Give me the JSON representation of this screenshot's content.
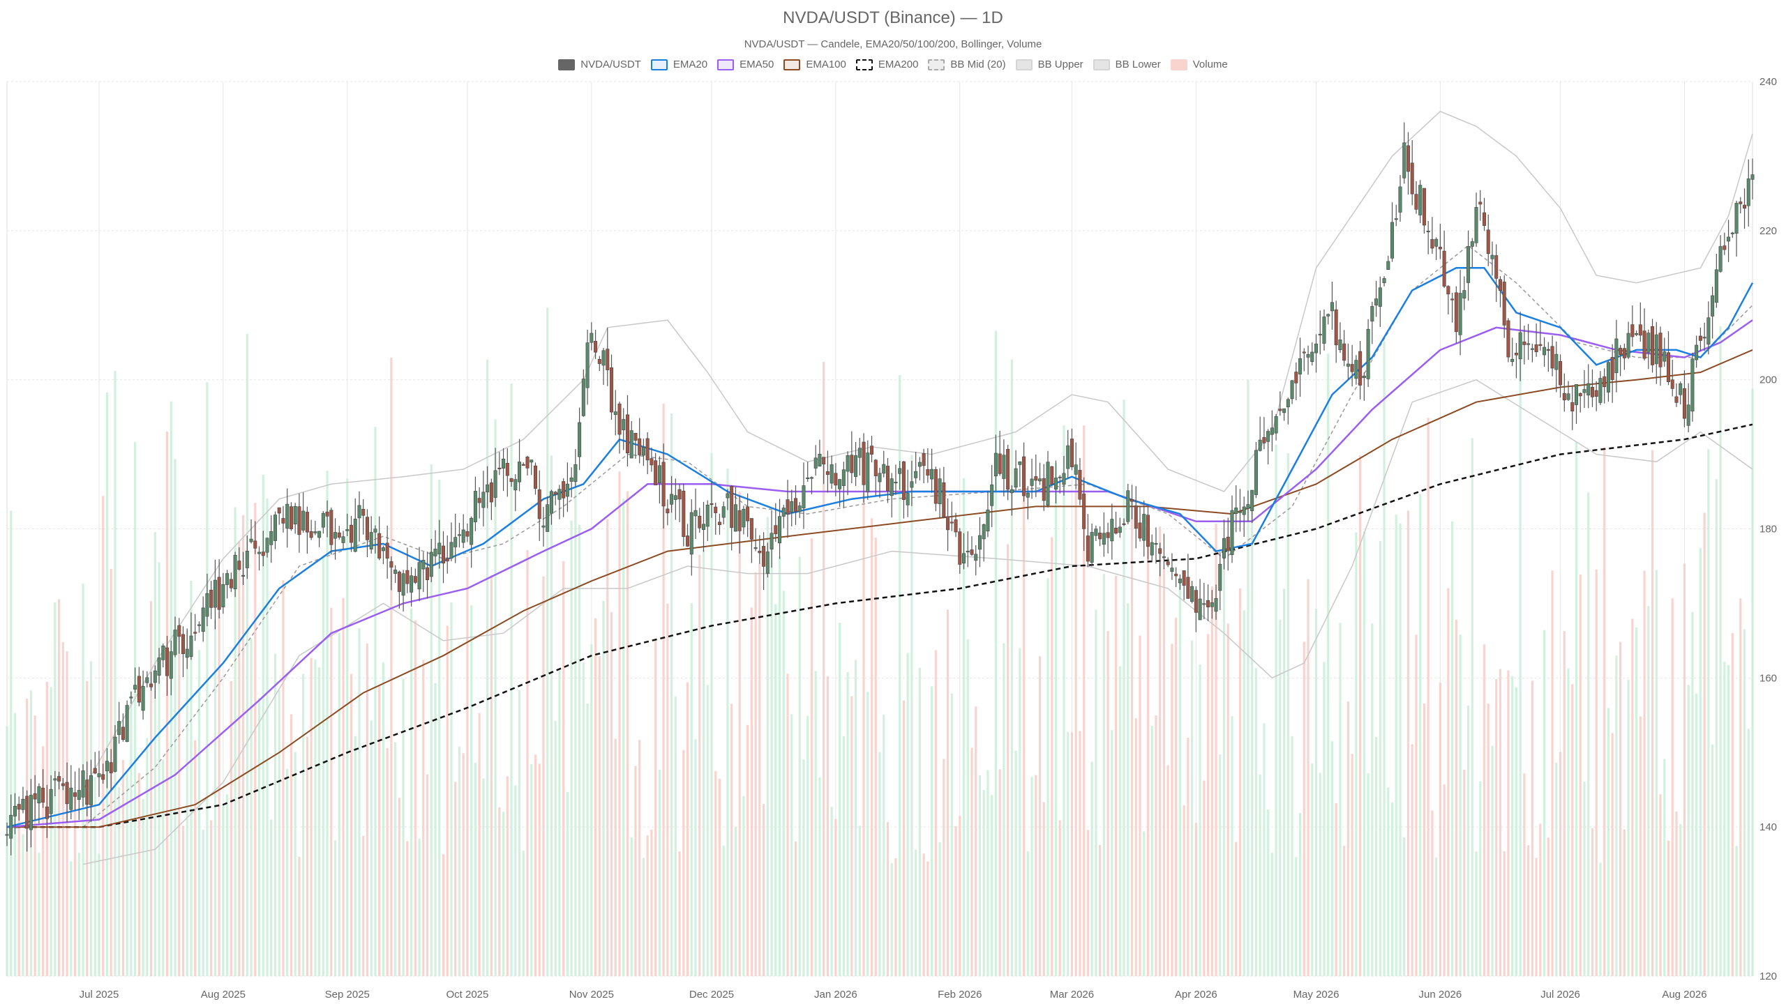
{
  "chart_data": {
    "type": "candlestick",
    "title": "NVDA/USDT (Binance) — 1D",
    "subtitle": "NVDA/USDT — Candele, EMA20/50/100/200, Bollinger, Volume",
    "symbol": "NVDA/USDT",
    "timeframe": "1D",
    "ylim": [
      120,
      240
    ],
    "y_ticks": [
      120,
      140,
      160,
      180,
      200,
      220,
      240
    ],
    "x_range": [
      "2025-06-08",
      "2026-08-18"
    ],
    "x_ticks": [
      {
        "date": "2025-07-01",
        "label": "Jul 2025"
      },
      {
        "date": "2025-08-01",
        "label": "Aug 2025"
      },
      {
        "date": "2025-09-01",
        "label": "Sep 2025"
      },
      {
        "date": "2025-10-01",
        "label": "Oct 2025"
      },
      {
        "date": "2025-11-01",
        "label": "Nov 2025"
      },
      {
        "date": "2025-12-01",
        "label": "Dec 2025"
      },
      {
        "date": "2026-01-01",
        "label": "Jan 2026"
      },
      {
        "date": "2026-02-01",
        "label": "Feb 2026"
      },
      {
        "date": "2026-03-01",
        "label": "Mar 2026"
      },
      {
        "date": "2026-04-01",
        "label": "Apr 2026"
      },
      {
        "date": "2026-05-01",
        "label": "May 2026"
      },
      {
        "date": "2026-06-01",
        "label": "Jun 2026"
      },
      {
        "date": "2026-07-01",
        "label": "Jul 2026"
      },
      {
        "date": "2026-08-01",
        "label": "Aug 2026"
      }
    ],
    "grid": true,
    "legend_position": "top-center",
    "legend": [
      {
        "label": "NVDA/USDT",
        "key": "candles",
        "fill": "#666666",
        "border": "#666666",
        "dashed": false
      },
      {
        "label": "EMA20",
        "key": "ema20",
        "fill": "#e6f1fc",
        "border": "#1a7fe0",
        "dashed": false
      },
      {
        "label": "EMA50",
        "key": "ema50",
        "fill": "#efe8fb",
        "border": "#9a5ef0",
        "dashed": false
      },
      {
        "label": "EMA100",
        "key": "ema100",
        "fill": "#f2e9e2",
        "border": "#8b4a22",
        "dashed": false
      },
      {
        "label": "EMA200",
        "key": "ema200",
        "fill": "#ffffff",
        "border": "#111111",
        "dashed": true
      },
      {
        "label": "BB Mid (20)",
        "key": "bb_mid",
        "fill": "#eeeeee",
        "border": "#aaaaaa",
        "dashed": true
      },
      {
        "label": "BB Upper",
        "key": "bb_upper",
        "fill": "#e5e5e5",
        "border": "#d5d5d5",
        "dashed": false
      },
      {
        "label": "BB Lower",
        "key": "bb_lower",
        "fill": "#e5e5e5",
        "border": "#d5d5d5",
        "dashed": false
      },
      {
        "label": "Volume",
        "key": "volume",
        "fill": "#f9d3cd",
        "border": "#f9d3cd",
        "dashed": false
      }
    ],
    "colors": {
      "up": "#5a8a6c",
      "down": "#a05545",
      "wick": "#555555",
      "vol_up": "#c9efd8",
      "vol_down": "#f8cdc7",
      "ema20": "#1a7fe0",
      "ema50": "#9a5ef0",
      "ema100": "#8b4a22",
      "ema200": "#111111",
      "bb_mid": "#999999",
      "bb_band": "#c8c8c8",
      "grid": "#e6e6e6"
    },
    "price_path": [
      {
        "date": "2025-06-08",
        "close": 141
      },
      {
        "date": "2025-06-20",
        "close": 144
      },
      {
        "date": "2025-07-01",
        "close": 146
      },
      {
        "date": "2025-07-10",
        "close": 157
      },
      {
        "date": "2025-07-20",
        "close": 164
      },
      {
        "date": "2025-08-01",
        "close": 172
      },
      {
        "date": "2025-08-10",
        "close": 178
      },
      {
        "date": "2025-08-18",
        "close": 182
      },
      {
        "date": "2025-08-28",
        "close": 179
      },
      {
        "date": "2025-09-05",
        "close": 181
      },
      {
        "date": "2025-09-15",
        "close": 172
      },
      {
        "date": "2025-09-25",
        "close": 177
      },
      {
        "date": "2025-10-05",
        "close": 184
      },
      {
        "date": "2025-10-15",
        "close": 190
      },
      {
        "date": "2025-10-20",
        "close": 182
      },
      {
        "date": "2025-10-27",
        "close": 186
      },
      {
        "date": "2025-11-01",
        "close": 208
      },
      {
        "date": "2025-11-08",
        "close": 194
      },
      {
        "date": "2025-11-15",
        "close": 189
      },
      {
        "date": "2025-11-25",
        "close": 180
      },
      {
        "date": "2025-12-05",
        "close": 183
      },
      {
        "date": "2025-12-15",
        "close": 176
      },
      {
        "date": "2025-12-25",
        "close": 187
      },
      {
        "date": "2026-01-05",
        "close": 189
      },
      {
        "date": "2026-01-15",
        "close": 186
      },
      {
        "date": "2026-01-25",
        "close": 187
      },
      {
        "date": "2026-02-03",
        "close": 175
      },
      {
        "date": "2026-02-10",
        "close": 189
      },
      {
        "date": "2026-02-20",
        "close": 185
      },
      {
        "date": "2026-03-01",
        "close": 190
      },
      {
        "date": "2026-03-05",
        "close": 178
      },
      {
        "date": "2026-03-15",
        "close": 183
      },
      {
        "date": "2026-03-25",
        "close": 176
      },
      {
        "date": "2026-04-03",
        "close": 168
      },
      {
        "date": "2026-04-10",
        "close": 180
      },
      {
        "date": "2026-04-20",
        "close": 194
      },
      {
        "date": "2026-04-28",
        "close": 202
      },
      {
        "date": "2026-05-05",
        "close": 208
      },
      {
        "date": "2026-05-12",
        "close": 200
      },
      {
        "date": "2026-05-18",
        "close": 215
      },
      {
        "date": "2026-05-23",
        "close": 230
      },
      {
        "date": "2026-05-30",
        "close": 219
      },
      {
        "date": "2026-06-05",
        "close": 208
      },
      {
        "date": "2026-06-10",
        "close": 224
      },
      {
        "date": "2026-06-18",
        "close": 205
      },
      {
        "date": "2026-06-27",
        "close": 206
      },
      {
        "date": "2026-07-03",
        "close": 196
      },
      {
        "date": "2026-07-10",
        "close": 200
      },
      {
        "date": "2026-07-18",
        "close": 205
      },
      {
        "date": "2026-07-26",
        "close": 204
      },
      {
        "date": "2026-08-01",
        "close": 196
      },
      {
        "date": "2026-08-06",
        "close": 208
      },
      {
        "date": "2026-08-11",
        "close": 219
      },
      {
        "date": "2026-08-18",
        "close": 226
      }
    ],
    "ema20_path": [
      {
        "date": "2025-06-08",
        "value": 140
      },
      {
        "date": "2025-07-01",
        "value": 143
      },
      {
        "date": "2025-07-15",
        "value": 152
      },
      {
        "date": "2025-08-01",
        "value": 162
      },
      {
        "date": "2025-08-15",
        "value": 172
      },
      {
        "date": "2025-08-28",
        "value": 177
      },
      {
        "date": "2025-09-10",
        "value": 178
      },
      {
        "date": "2025-09-22",
        "value": 175
      },
      {
        "date": "2025-10-05",
        "value": 178
      },
      {
        "date": "2025-10-20",
        "value": 184
      },
      {
        "date": "2025-10-30",
        "value": 186
      },
      {
        "date": "2025-11-08",
        "value": 192
      },
      {
        "date": "2025-11-20",
        "value": 190
      },
      {
        "date": "2025-12-05",
        "value": 185
      },
      {
        "date": "2025-12-20",
        "value": 182
      },
      {
        "date": "2026-01-05",
        "value": 184
      },
      {
        "date": "2026-01-20",
        "value": 185
      },
      {
        "date": "2026-02-05",
        "value": 185
      },
      {
        "date": "2026-02-20",
        "value": 185
      },
      {
        "date": "2026-03-01",
        "value": 187
      },
      {
        "date": "2026-03-15",
        "value": 184
      },
      {
        "date": "2026-03-28",
        "value": 182
      },
      {
        "date": "2026-04-06",
        "value": 177
      },
      {
        "date": "2026-04-15",
        "value": 178
      },
      {
        "date": "2026-04-25",
        "value": 188
      },
      {
        "date": "2026-05-05",
        "value": 198
      },
      {
        "date": "2026-05-15",
        "value": 203
      },
      {
        "date": "2026-05-25",
        "value": 212
      },
      {
        "date": "2026-06-05",
        "value": 215
      },
      {
        "date": "2026-06-12",
        "value": 215
      },
      {
        "date": "2026-06-20",
        "value": 209
      },
      {
        "date": "2026-07-01",
        "value": 207
      },
      {
        "date": "2026-07-10",
        "value": 202
      },
      {
        "date": "2026-07-20",
        "value": 204
      },
      {
        "date": "2026-07-30",
        "value": 204
      },
      {
        "date": "2026-08-05",
        "value": 203
      },
      {
        "date": "2026-08-12",
        "value": 207
      },
      {
        "date": "2026-08-18",
        "value": 213
      }
    ],
    "ema50_path": [
      {
        "date": "2025-06-08",
        "value": 140
      },
      {
        "date": "2025-07-01",
        "value": 141
      },
      {
        "date": "2025-07-20",
        "value": 147
      },
      {
        "date": "2025-08-10",
        "value": 157
      },
      {
        "date": "2025-08-28",
        "value": 166
      },
      {
        "date": "2025-09-15",
        "value": 170
      },
      {
        "date": "2025-10-01",
        "value": 172
      },
      {
        "date": "2025-10-20",
        "value": 177
      },
      {
        "date": "2025-11-01",
        "value": 180
      },
      {
        "date": "2025-11-15",
        "value": 186
      },
      {
        "date": "2025-12-01",
        "value": 186
      },
      {
        "date": "2025-12-20",
        "value": 185
      },
      {
        "date": "2026-01-10",
        "value": 185
      },
      {
        "date": "2026-02-01",
        "value": 185
      },
      {
        "date": "2026-02-20",
        "value": 185
      },
      {
        "date": "2026-03-10",
        "value": 185
      },
      {
        "date": "2026-04-01",
        "value": 181
      },
      {
        "date": "2026-04-15",
        "value": 181
      },
      {
        "date": "2026-05-01",
        "value": 188
      },
      {
        "date": "2026-05-15",
        "value": 196
      },
      {
        "date": "2026-06-01",
        "value": 204
      },
      {
        "date": "2026-06-15",
        "value": 207
      },
      {
        "date": "2026-07-01",
        "value": 206
      },
      {
        "date": "2026-07-15",
        "value": 204
      },
      {
        "date": "2026-08-01",
        "value": 203
      },
      {
        "date": "2026-08-10",
        "value": 205
      },
      {
        "date": "2026-08-18",
        "value": 208
      }
    ],
    "ema100_path": [
      {
        "date": "2025-06-08",
        "value": 140
      },
      {
        "date": "2025-07-01",
        "value": 140
      },
      {
        "date": "2025-07-25",
        "value": 143
      },
      {
        "date": "2025-08-15",
        "value": 150
      },
      {
        "date": "2025-09-05",
        "value": 158
      },
      {
        "date": "2025-09-25",
        "value": 163
      },
      {
        "date": "2025-10-15",
        "value": 169
      },
      {
        "date": "2025-11-01",
        "value": 173
      },
      {
        "date": "2025-11-20",
        "value": 177
      },
      {
        "date": "2025-12-20",
        "value": 179
      },
      {
        "date": "2026-01-20",
        "value": 181
      },
      {
        "date": "2026-02-20",
        "value": 183
      },
      {
        "date": "2026-03-20",
        "value": 183
      },
      {
        "date": "2026-04-10",
        "value": 182
      },
      {
        "date": "2026-05-01",
        "value": 186
      },
      {
        "date": "2026-05-20",
        "value": 192
      },
      {
        "date": "2026-06-10",
        "value": 197
      },
      {
        "date": "2026-07-01",
        "value": 199
      },
      {
        "date": "2026-07-20",
        "value": 200
      },
      {
        "date": "2026-08-05",
        "value": 201
      },
      {
        "date": "2026-08-18",
        "value": 204
      }
    ],
    "ema200_path": [
      {
        "date": "2025-06-08",
        "value": 140
      },
      {
        "date": "2025-07-01",
        "value": 140
      },
      {
        "date": "2025-08-01",
        "value": 143
      },
      {
        "date": "2025-09-01",
        "value": 150
      },
      {
        "date": "2025-10-01",
        "value": 156
      },
      {
        "date": "2025-11-01",
        "value": 163
      },
      {
        "date": "2025-12-01",
        "value": 167
      },
      {
        "date": "2026-01-01",
        "value": 170
      },
      {
        "date": "2026-02-01",
        "value": 172
      },
      {
        "date": "2026-03-01",
        "value": 175
      },
      {
        "date": "2026-04-01",
        "value": 176
      },
      {
        "date": "2026-05-01",
        "value": 180
      },
      {
        "date": "2026-06-01",
        "value": 186
      },
      {
        "date": "2026-07-01",
        "value": 190
      },
      {
        "date": "2026-08-01",
        "value": 192
      },
      {
        "date": "2026-08-18",
        "value": 194
      }
    ],
    "bb_mid_path": [
      {
        "date": "2025-06-27",
        "value": 140
      },
      {
        "date": "2025-07-15",
        "value": 148
      },
      {
        "date": "2025-08-01",
        "value": 160
      },
      {
        "date": "2025-08-20",
        "value": 175
      },
      {
        "date": "2025-09-10",
        "value": 179
      },
      {
        "date": "2025-09-25",
        "value": 176
      },
      {
        "date": "2025-10-10",
        "value": 178
      },
      {
        "date": "2025-10-25",
        "value": 183
      },
      {
        "date": "2025-11-10",
        "value": 190
      },
      {
        "date": "2025-11-25",
        "value": 189
      },
      {
        "date": "2025-12-10",
        "value": 183
      },
      {
        "date": "2025-12-25",
        "value": 182
      },
      {
        "date": "2026-01-15",
        "value": 184
      },
      {
        "date": "2026-02-10",
        "value": 185
      },
      {
        "date": "2026-03-05",
        "value": 186
      },
      {
        "date": "2026-03-25",
        "value": 182
      },
      {
        "date": "2026-04-08",
        "value": 176
      },
      {
        "date": "2026-04-25",
        "value": 183
      },
      {
        "date": "2026-05-10",
        "value": 198
      },
      {
        "date": "2026-05-25",
        "value": 212
      },
      {
        "date": "2026-06-08",
        "value": 218
      },
      {
        "date": "2026-06-20",
        "value": 213
      },
      {
        "date": "2026-07-05",
        "value": 205
      },
      {
        "date": "2026-07-20",
        "value": 203
      },
      {
        "date": "2026-08-05",
        "value": 203
      },
      {
        "date": "2026-08-18",
        "value": 210
      }
    ],
    "bb_upper_path": [
      {
        "date": "2025-06-27",
        "value": 145
      },
      {
        "date": "2025-07-15",
        "value": 162
      },
      {
        "date": "2025-08-01",
        "value": 176
      },
      {
        "date": "2025-08-15",
        "value": 184
      },
      {
        "date": "2025-08-28",
        "value": 186
      },
      {
        "date": "2025-09-15",
        "value": 187
      },
      {
        "date": "2025-09-30",
        "value": 188
      },
      {
        "date": "2025-10-15",
        "value": 192
      },
      {
        "date": "2025-10-30",
        "value": 200
      },
      {
        "date": "2025-11-05",
        "value": 207
      },
      {
        "date": "2025-11-20",
        "value": 208
      },
      {
        "date": "2025-11-30",
        "value": 201
      },
      {
        "date": "2025-12-10",
        "value": 193
      },
      {
        "date": "2025-12-25",
        "value": 189
      },
      {
        "date": "2026-01-10",
        "value": 191
      },
      {
        "date": "2026-01-25",
        "value": 190
      },
      {
        "date": "2026-02-15",
        "value": 193
      },
      {
        "date": "2026-03-01",
        "value": 198
      },
      {
        "date": "2026-03-10",
        "value": 197
      },
      {
        "date": "2026-03-25",
        "value": 188
      },
      {
        "date": "2026-04-08",
        "value": 185
      },
      {
        "date": "2026-04-20",
        "value": 193
      },
      {
        "date": "2026-05-01",
        "value": 215
      },
      {
        "date": "2026-05-20",
        "value": 230
      },
      {
        "date": "2026-06-01",
        "value": 236
      },
      {
        "date": "2026-06-10",
        "value": 234
      },
      {
        "date": "2026-06-20",
        "value": 230
      },
      {
        "date": "2026-07-01",
        "value": 223
      },
      {
        "date": "2026-07-10",
        "value": 214
      },
      {
        "date": "2026-07-20",
        "value": 213
      },
      {
        "date": "2026-08-05",
        "value": 215
      },
      {
        "date": "2026-08-12",
        "value": 222
      },
      {
        "date": "2026-08-18",
        "value": 233
      }
    ],
    "bb_lower_path": [
      {
        "date": "2025-06-27",
        "value": 135
      },
      {
        "date": "2025-07-15",
        "value": 137
      },
      {
        "date": "2025-08-01",
        "value": 146
      },
      {
        "date": "2025-08-20",
        "value": 163
      },
      {
        "date": "2025-09-10",
        "value": 170
      },
      {
        "date": "2025-09-25",
        "value": 165
      },
      {
        "date": "2025-10-10",
        "value": 166
      },
      {
        "date": "2025-10-25",
        "value": 172
      },
      {
        "date": "2025-11-10",
        "value": 172
      },
      {
        "date": "2025-11-25",
        "value": 175
      },
      {
        "date": "2025-12-10",
        "value": 174
      },
      {
        "date": "2025-12-25",
        "value": 174
      },
      {
        "date": "2026-01-15",
        "value": 177
      },
      {
        "date": "2026-02-10",
        "value": 176
      },
      {
        "date": "2026-03-05",
        "value": 175
      },
      {
        "date": "2026-03-25",
        "value": 172
      },
      {
        "date": "2026-04-08",
        "value": 166
      },
      {
        "date": "2026-04-20",
        "value": 160
      },
      {
        "date": "2026-04-28",
        "value": 162
      },
      {
        "date": "2026-05-10",
        "value": 175
      },
      {
        "date": "2026-05-25",
        "value": 197
      },
      {
        "date": "2026-06-10",
        "value": 200
      },
      {
        "date": "2026-06-25",
        "value": 195
      },
      {
        "date": "2026-07-10",
        "value": 190
      },
      {
        "date": "2026-07-25",
        "value": 189
      },
      {
        "date": "2026-08-05",
        "value": 193
      },
      {
        "date": "2026-08-18",
        "value": 188
      }
    ],
    "volume_range": [
      120,
      230
    ]
  }
}
